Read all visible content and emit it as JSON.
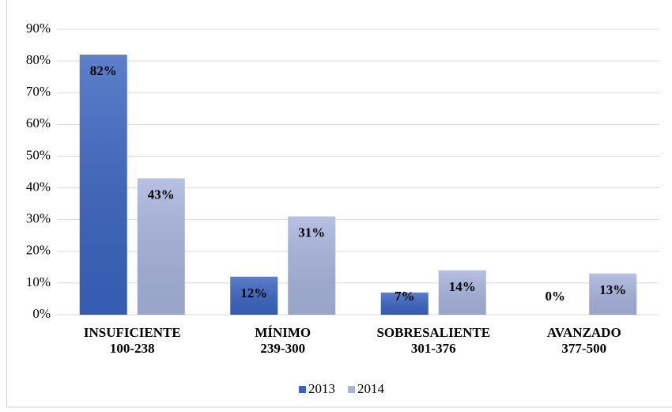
{
  "chart_data": {
    "type": "bar",
    "categories": [
      "INSUFICIENTE\n100-238",
      "MÍNIMO\n239-300",
      "SOBRESALIENTE\n301-376",
      "AVANZADO\n377-500"
    ],
    "series": [
      {
        "name": "2013",
        "color": "#3a64c0",
        "values": [
          82,
          12,
          7,
          0
        ],
        "value_labels": [
          "82%",
          "12%",
          "7%",
          "0%"
        ]
      },
      {
        "name": "2014",
        "color": "#a7b3dc",
        "values": [
          43,
          31,
          14,
          13
        ],
        "value_labels": [
          "43%",
          "31%",
          "14%",
          "13%"
        ]
      }
    ],
    "ylim": [
      0,
      90
    ],
    "yticks": [
      {
        "value": 0,
        "label": "0%"
      },
      {
        "value": 10,
        "label": "10%"
      },
      {
        "value": 20,
        "label": "20%"
      },
      {
        "value": 30,
        "label": "30%"
      },
      {
        "value": 40,
        "label": "40%"
      },
      {
        "value": 50,
        "label": "50%"
      },
      {
        "value": 60,
        "label": "60%"
      },
      {
        "value": 70,
        "label": "70%"
      },
      {
        "value": 80,
        "label": "80%"
      },
      {
        "value": 90,
        "label": "90%"
      }
    ],
    "grid": true,
    "legend": "bottom"
  }
}
